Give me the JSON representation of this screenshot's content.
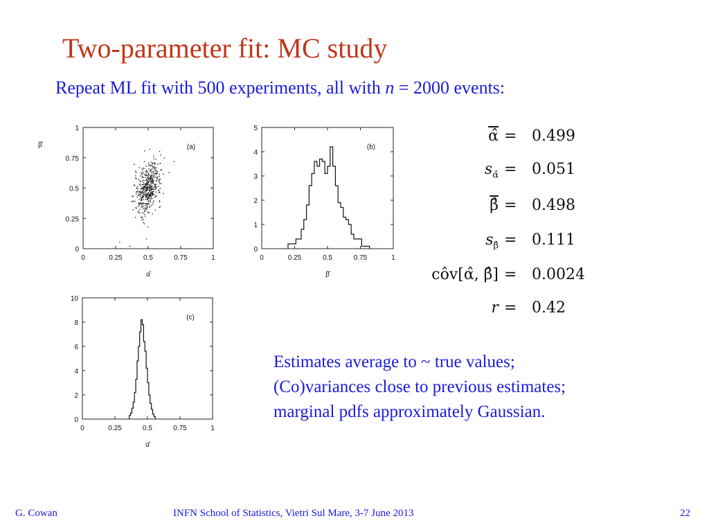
{
  "slide": {
    "title": "Two-parameter fit:  MC study",
    "subtitle_pre": "Repeat ML fit with 500 experiments, all with ",
    "subtitle_var": "n",
    "subtitle_post": " = 2000 events:"
  },
  "stats": [
    {
      "lhs": "α̂",
      "eq": "=",
      "value": "0.499"
    },
    {
      "lhs": "s",
      "lhs_sub": "α̂",
      "eq": "=",
      "value": "0.051"
    },
    {
      "lhs": "β̂",
      "eq": "=",
      "value": "0.498"
    },
    {
      "lhs": "s",
      "lhs_sub": "β̂",
      "eq": "=",
      "value": "0.111"
    },
    {
      "lhs": "côv[α̂, β̂]",
      "eq": "=",
      "value": "0.0024"
    },
    {
      "lhs": "r",
      "eq": "=",
      "value": "0.42"
    }
  ],
  "conclusions": [
    "Estimates average to ~ true values;",
    "(Co)variances close to previous estimates;",
    "marginal pdfs approximately Gaussian."
  ],
  "footer": {
    "author": "G. Cowan",
    "venue": "INFN School of Statistics, Vietri Sul Mare, 3-7 June 2013",
    "page": "22"
  },
  "chart_data": [
    {
      "type": "scatter",
      "panel_label": "(a)",
      "xlabel": "α̂",
      "ylabel": "β̂",
      "xlim": [
        0,
        1
      ],
      "ylim": [
        0,
        1
      ],
      "xticks": [
        0,
        0.25,
        0.5,
        0.75,
        1
      ],
      "xtick_labels": [
        "0",
        "0.25",
        "0.5",
        "0.75",
        "1"
      ],
      "yticks": [
        0,
        0.25,
        0.5,
        0.75,
        1
      ],
      "ytick_labels": [
        "0",
        "0.25",
        "0.5",
        "0.75",
        "1"
      ],
      "x_mean": 0.499,
      "y_mean": 0.498,
      "x_sd": 0.051,
      "y_sd": 0.111,
      "correlation": 0.42,
      "n_points": 500
    },
    {
      "type": "histogram",
      "panel_label": "(b)",
      "xlabel": "β̂",
      "xlim": [
        0,
        1
      ],
      "ylim": [
        0,
        5
      ],
      "xticks": [
        0,
        0.25,
        0.5,
        0.75,
        1
      ],
      "xtick_labels": [
        "0",
        "0.25",
        "0.5",
        "0.75",
        "1"
      ],
      "yticks": [
        0,
        1,
        2,
        3,
        4,
        5
      ],
      "ytick_labels": [
        "0",
        "1",
        "2",
        "3",
        "4",
        "5"
      ],
      "bin_width": 0.02,
      "bin_start": 0.2,
      "values": [
        0.2,
        0.2,
        0.2,
        0.4,
        0.4,
        0.8,
        1.2,
        1.8,
        2.6,
        3.1,
        3.6,
        3.4,
        3.7,
        3.6,
        3.1,
        3.4,
        4.2,
        3.4,
        2.6,
        1.9,
        1.7,
        1.3,
        1.2,
        1.0,
        0.6,
        0.4,
        0.4,
        0.4,
        0.1,
        0.1,
        0.1
      ]
    },
    {
      "type": "histogram",
      "panel_label": "(c)",
      "xlabel": "α̂",
      "xlim": [
        0,
        1
      ],
      "ylim": [
        0,
        10
      ],
      "xticks": [
        0,
        0.25,
        0.5,
        0.75,
        1
      ],
      "xtick_labels": [
        "0",
        "0.25",
        "0.5",
        "0.75",
        "1"
      ],
      "yticks": [
        0,
        2,
        4,
        6,
        8,
        10
      ],
      "ytick_labels": [
        "0",
        "2",
        "4",
        "6",
        "8",
        "10"
      ],
      "bin_width": 0.01,
      "bin_start": 0.36,
      "values": [
        0.3,
        0.5,
        0.9,
        1.4,
        2.2,
        3.3,
        4.8,
        6.0,
        7.2,
        8.2,
        7.8,
        6.4,
        5.6,
        4.2,
        3.0,
        2.0,
        1.3,
        0.8,
        0.4,
        0.2
      ]
    }
  ]
}
